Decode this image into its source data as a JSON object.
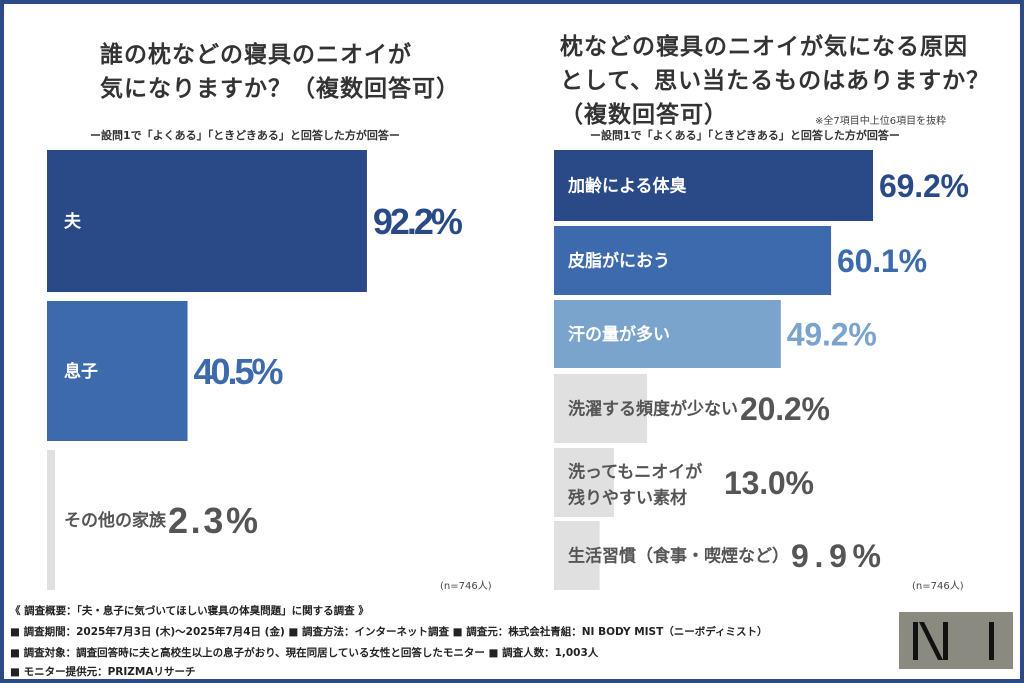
{
  "colors": {
    "frame": "#2c4a86",
    "dark": "#2a4a87",
    "mid": "#3d6aac",
    "light": "#7ba4cc",
    "gray": "#e0e0e0",
    "gray_text": "#555555"
  },
  "chart_data": [
    {
      "type": "bar",
      "orientation": "horizontal",
      "title": "誰の枕などの寝具のニオイが気になりますか？（複数回答可）",
      "subtitle": "ー設問1で「よくある」「ときどきある」と回答した方が回答ー",
      "categories": [
        "夫",
        "息子",
        "その他の家族"
      ],
      "values": [
        92.2,
        40.5,
        2.3
      ],
      "labels": [
        "92.2%",
        "40.5%",
        "2.3%"
      ],
      "bar_colors": [
        "#2a4a87",
        "#3d6aac",
        "#e0e0e0"
      ],
      "value_colors": [
        "#2a4a87",
        "#3d6aac",
        "#555555"
      ],
      "label_colors": [
        "#ffffff",
        "#ffffff",
        "#555555"
      ],
      "note": "(n=746人)"
    },
    {
      "type": "bar",
      "orientation": "horizontal",
      "title": "枕などの寝具のニオイが気になる原因として、思い当たるものはありますか？（複数回答可）",
      "subtitle": "ー設問1で「よくある」「ときどきある」と回答した方が回答ー",
      "annotation": "※全7項目中上位6項目を抜粋",
      "categories": [
        "加齢による体臭",
        "皮脂がにおう",
        "汗の量が多い",
        "洗濯する頻度が少ない",
        "洗ってもニオイが残りやすい素材",
        "生活習慣（食事・喫煙など）"
      ],
      "values": [
        69.2,
        60.1,
        49.2,
        20.2,
        13.0,
        9.9
      ],
      "labels": [
        "69.2%",
        "60.1%",
        "49.2%",
        "20.2%",
        "13.0%",
        "9.9%"
      ],
      "bar_colors": [
        "#2a4a87",
        "#3d6aac",
        "#7ba4cc",
        "#e0e0e0",
        "#e0e0e0",
        "#e0e0e0"
      ],
      "value_colors": [
        "#2a4a87",
        "#3d6aac",
        "#7ba4cc",
        "#555555",
        "#555555",
        "#555555"
      ],
      "label_colors": [
        "#ffffff",
        "#ffffff",
        "#ffffff",
        "#555555",
        "#555555",
        "#555555"
      ],
      "note": "(n=746人)"
    }
  ],
  "left": {
    "title_line1": "誰の枕などの寝具のニオイが",
    "title_line2": "気になりますか？（複数回答可）"
  },
  "right": {
    "title_line1": "枕などの寝具のニオイが気になる原因",
    "title_line2": "として、思い当たるものはありますか？",
    "title_line3": "（複数回答可）"
  },
  "footer": {
    "line1": "《 調査概要：「夫・息子に気づいてほしい寝具の体臭問題」に関する調査 》",
    "line2": "■ 調査期間：2025年7月3日 (木)～2025年7月4日 (金)  ■ 調査方法：インターネット調査  ■ 調査元：株式会社青組：NI BODY MIST（ニーボディミスト）",
    "line3": "■ 調査対象：調査回答時に夫と高校生以上の息子がおり、現在同居している女性と回答したモニター  ■ 調査人数：1,003人",
    "line4": "■ モニター提供元：PRIZMAリサーチ"
  },
  "logo": {
    "text": "NI"
  }
}
